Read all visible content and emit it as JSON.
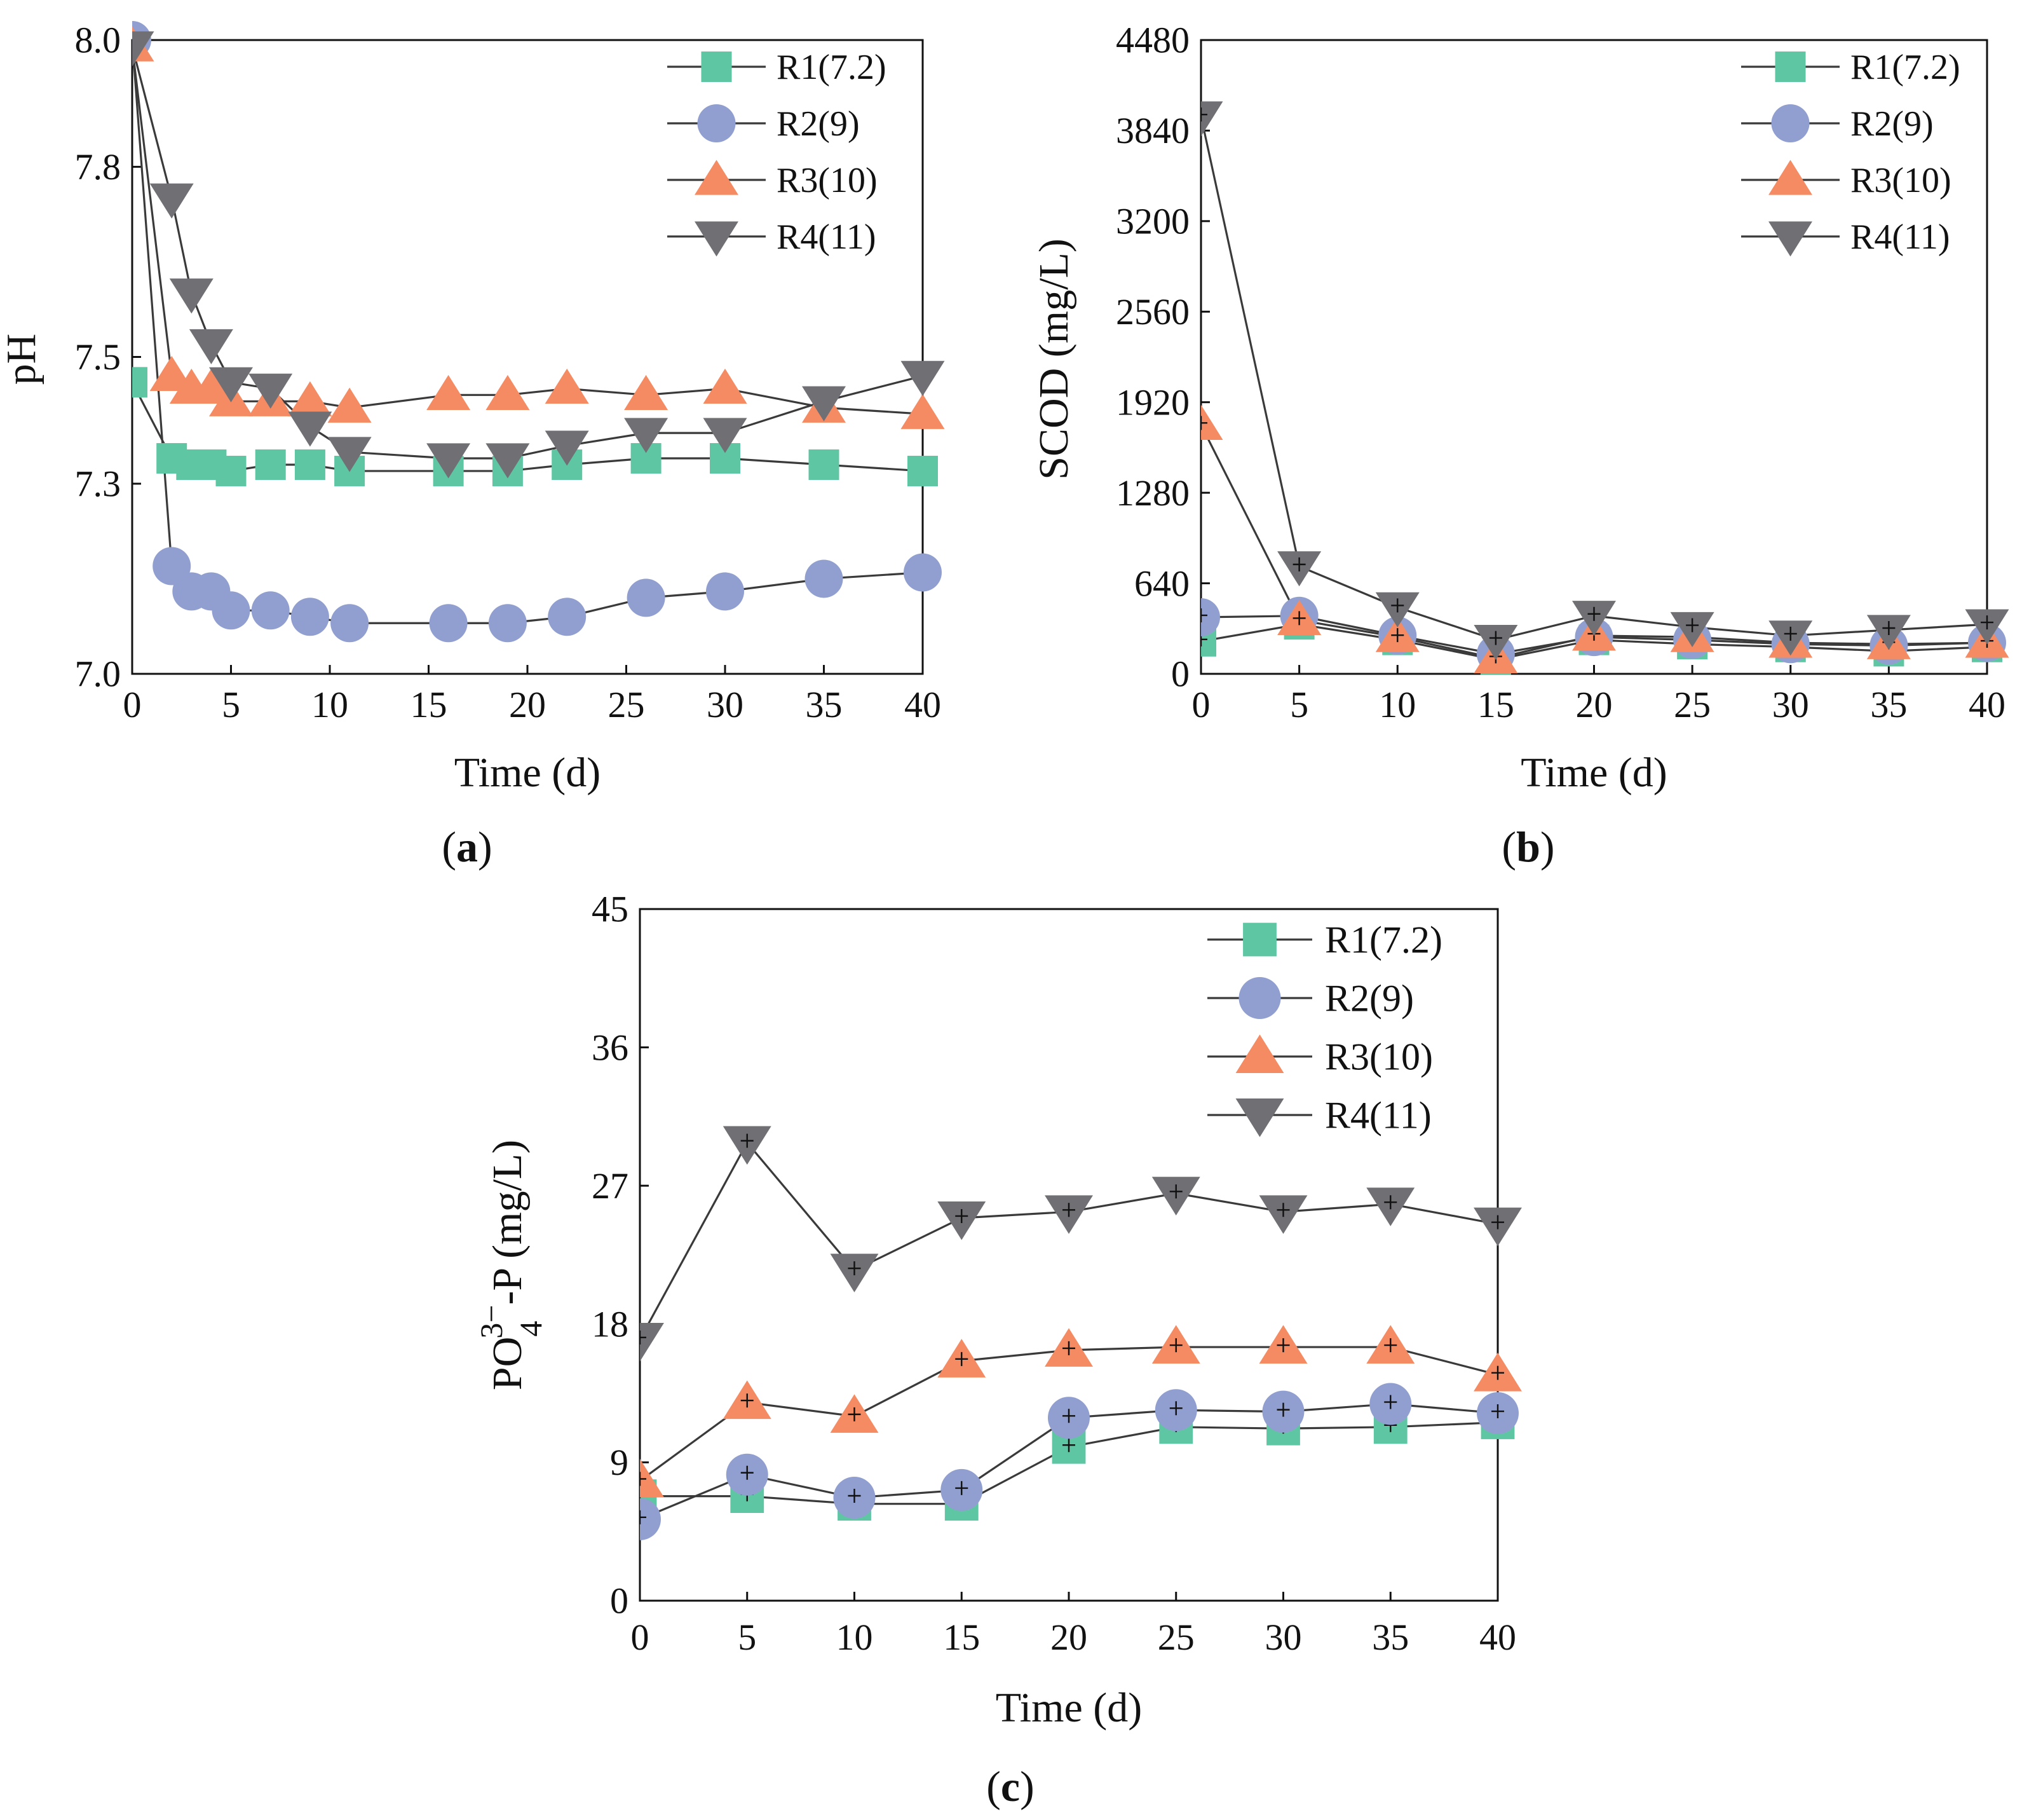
{
  "colors": {
    "R1": "#5fc6a3",
    "R2": "#909fcf",
    "R3": "#f58b63",
    "R4": "#6f6f74",
    "line": "#3a3a3a",
    "axis": "#111111"
  },
  "chart_data": [
    {
      "type": "line",
      "panel_label": "a",
      "xlabel": "Time (d)",
      "ylabel": "pH",
      "xlim": [
        0,
        40
      ],
      "ylim": [
        7.0,
        8.0
      ],
      "xticks": [
        0,
        5,
        10,
        15,
        20,
        25,
        30,
        35,
        40
      ],
      "yticks": [
        7.0,
        7.3,
        7.5,
        7.8,
        8.0
      ],
      "ytick_labels": [
        "7.0",
        "7.3",
        "7.5",
        "7.8",
        "8.0"
      ],
      "legend_position": "top-right",
      "grid": false,
      "series": [
        {
          "name": "R1(7.2)",
          "marker": "square",
          "x": [
            0,
            2,
            3,
            3.5,
            4,
            5,
            7,
            9,
            11,
            16,
            19,
            22,
            26,
            30,
            35,
            40
          ],
          "y": [
            7.46,
            7.34,
            7.33,
            7.33,
            7.33,
            7.32,
            7.33,
            7.33,
            7.32,
            7.32,
            7.32,
            7.33,
            7.34,
            7.34,
            7.33,
            7.32
          ]
        },
        {
          "name": "R2(9)",
          "marker": "circle",
          "x": [
            0,
            2,
            3,
            4,
            5,
            7,
            9,
            11,
            16,
            19,
            22,
            26,
            30,
            35,
            40
          ],
          "y": [
            8.0,
            7.17,
            7.13,
            7.13,
            7.1,
            7.1,
            7.09,
            7.08,
            7.08,
            7.08,
            7.09,
            7.12,
            7.13,
            7.15,
            7.16
          ]
        },
        {
          "name": "R3(10)",
          "marker": "triangle-up",
          "x": [
            0,
            2,
            3,
            4,
            5,
            7,
            9,
            11,
            16,
            19,
            22,
            26,
            30,
            35,
            40
          ],
          "y": [
            7.99,
            7.47,
            7.45,
            7.45,
            7.43,
            7.43,
            7.43,
            7.42,
            7.44,
            7.44,
            7.45,
            7.44,
            7.45,
            7.42,
            7.41
          ]
        },
        {
          "name": "R4(11)",
          "marker": "triangle-down",
          "x": [
            0,
            2,
            3,
            4,
            5,
            7,
            9,
            11,
            16,
            19,
            22,
            26,
            30,
            35,
            40
          ],
          "y": [
            7.99,
            7.75,
            7.6,
            7.52,
            7.46,
            7.45,
            7.39,
            7.35,
            7.34,
            7.34,
            7.36,
            7.38,
            7.38,
            7.43,
            7.47
          ]
        }
      ]
    },
    {
      "type": "line",
      "panel_label": "b",
      "xlabel": "Time (d)",
      "ylabel": "SCOD (mg/L)",
      "xlim": [
        0,
        40
      ],
      "ylim": [
        0,
        4480
      ],
      "xticks": [
        0,
        5,
        10,
        15,
        20,
        25,
        30,
        35,
        40
      ],
      "yticks": [
        0,
        640,
        1280,
        1920,
        2560,
        3200,
        3840,
        4480
      ],
      "ytick_labels": [
        "0",
        "640",
        "1280",
        "1920",
        "2560",
        "3200",
        "3840",
        "4480"
      ],
      "legend_position": "top-right",
      "grid": false,
      "series": [
        {
          "name": "R1(7.2)",
          "marker": "square",
          "x": [
            0,
            5,
            10,
            15,
            20,
            25,
            30,
            35,
            40
          ],
          "y": [
            230,
            350,
            240,
            100,
            240,
            210,
            190,
            160,
            190
          ]
        },
        {
          "name": "R2(9)",
          "marker": "circle",
          "x": [
            0,
            5,
            10,
            15,
            20,
            25,
            30,
            35,
            40
          ],
          "y": [
            400,
            410,
            270,
            140,
            260,
            240,
            210,
            200,
            220
          ]
        },
        {
          "name": "R3(10)",
          "marker": "triangle-up",
          "x": [
            0,
            5,
            10,
            15,
            20,
            25,
            30,
            35,
            40
          ],
          "y": [
            1760,
            380,
            260,
            110,
            270,
            260,
            220,
            210,
            220
          ]
        },
        {
          "name": "R4(11)",
          "marker": "triangle-down",
          "x": [
            0,
            5,
            10,
            15,
            20,
            25,
            30,
            35,
            40
          ],
          "y": [
            3940,
            760,
            470,
            240,
            410,
            330,
            270,
            310,
            350
          ]
        }
      ]
    },
    {
      "type": "line",
      "panel_label": "c",
      "xlabel": "Time (d)",
      "ylabel_main": "PO",
      "ylabel_sup": "3−",
      "ylabel_sub": "4",
      "ylabel_rest": "-P (mg/L)",
      "xlim": [
        0,
        40
      ],
      "ylim": [
        0,
        45
      ],
      "xticks": [
        0,
        5,
        10,
        15,
        20,
        25,
        30,
        35,
        40
      ],
      "yticks": [
        0,
        9,
        18,
        27,
        36,
        45
      ],
      "ytick_labels": [
        "0",
        "9",
        "18",
        "27",
        "36",
        "45"
      ],
      "legend_position": "top-right",
      "grid": false,
      "series": [
        {
          "name": "R1(7.2)",
          "marker": "square",
          "x": [
            0,
            5,
            10,
            15,
            20,
            25,
            30,
            35,
            40
          ],
          "y": [
            6.8,
            6.8,
            6.3,
            6.3,
            10.0,
            11.3,
            11.2,
            11.3,
            11.6
          ]
        },
        {
          "name": "R2(9)",
          "marker": "circle",
          "x": [
            0,
            5,
            10,
            15,
            20,
            25,
            30,
            35,
            40
          ],
          "y": [
            5.3,
            8.2,
            6.7,
            7.2,
            11.9,
            12.4,
            12.3,
            12.8,
            12.2
          ]
        },
        {
          "name": "R3(10)",
          "marker": "triangle-up",
          "x": [
            0,
            5,
            10,
            15,
            20,
            25,
            30,
            35,
            40
          ],
          "y": [
            7.8,
            12.9,
            12.0,
            15.6,
            16.3,
            16.5,
            16.5,
            16.5,
            14.7
          ]
        },
        {
          "name": "R4(11)",
          "marker": "triangle-down",
          "x": [
            0,
            5,
            10,
            15,
            20,
            25,
            30,
            35,
            40
          ],
          "y": [
            17.0,
            29.8,
            21.5,
            24.9,
            25.3,
            26.5,
            25.3,
            25.8,
            24.5
          ]
        }
      ]
    }
  ]
}
